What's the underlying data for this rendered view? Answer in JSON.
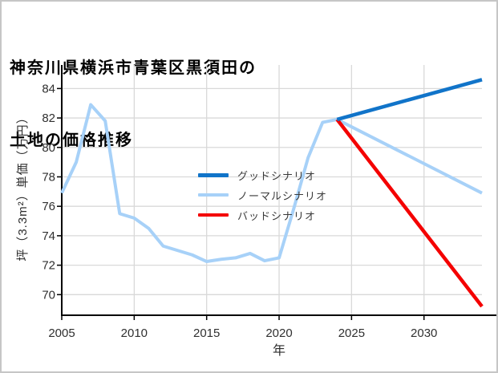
{
  "title": {
    "line1": "神奈川県横浜市青葉区黒須田の",
    "line2": "土地の価格推移"
  },
  "axes": {
    "x_label": "年",
    "y_label": "坪（3.3m²）単価（万円）"
  },
  "legend": {
    "items": [
      {
        "id": "good",
        "label": "グッドシナリオ",
        "color": "#1174c9",
        "thickness": 5
      },
      {
        "id": "normal",
        "label": "ノーマルシナリオ",
        "color": "#a7d1f8",
        "thickness": 4
      },
      {
        "id": "bad",
        "label": "バッドシナリオ",
        "color": "#f40000",
        "thickness": 4
      }
    ]
  },
  "chart_data": {
    "type": "line",
    "title": "神奈川県横浜市青葉区黒須田の土地の価格推移",
    "xlabel": "年",
    "ylabel": "坪（3.3m²）単価（万円）",
    "xlim": [
      2005,
      2034
    ],
    "ylim": [
      68.6,
      85.6
    ],
    "xticks": [
      2005,
      2010,
      2015,
      2020,
      2025,
      2030
    ],
    "yticks": [
      70,
      72,
      74,
      76,
      78,
      80,
      82,
      84
    ],
    "grid": true,
    "grid_color": "#d9d9d9",
    "spine_color": "#000000",
    "tick_label_color": "#303030",
    "legend_position": "center-left-inside",
    "series": [
      {
        "id": "normal",
        "name": "ノーマルシナリオ",
        "color": "#a7d1f8",
        "width": 4,
        "x": [
          2005,
          2006,
          2007,
          2008,
          2009,
          2010,
          2011,
          2012,
          2013,
          2014,
          2015,
          2016,
          2017,
          2018,
          2019,
          2020,
          2021,
          2022,
          2023,
          2024,
          2034
        ],
        "values": [
          76.9,
          79.0,
          82.9,
          81.8,
          75.5,
          75.2,
          74.5,
          73.3,
          73.0,
          72.7,
          72.25,
          72.4,
          72.5,
          72.8,
          72.3,
          72.5,
          75.8,
          79.3,
          81.7,
          81.9,
          76.9
        ]
      },
      {
        "id": "bad",
        "name": "バッドシナリオ",
        "color": "#f40000",
        "width": 4.5,
        "x": [
          2024,
          2034
        ],
        "values": [
          81.9,
          69.2
        ]
      },
      {
        "id": "good",
        "name": "グッドシナリオ",
        "color": "#1174c9",
        "width": 4.5,
        "x": [
          2024,
          2034
        ],
        "values": [
          81.9,
          84.6
        ]
      }
    ]
  }
}
